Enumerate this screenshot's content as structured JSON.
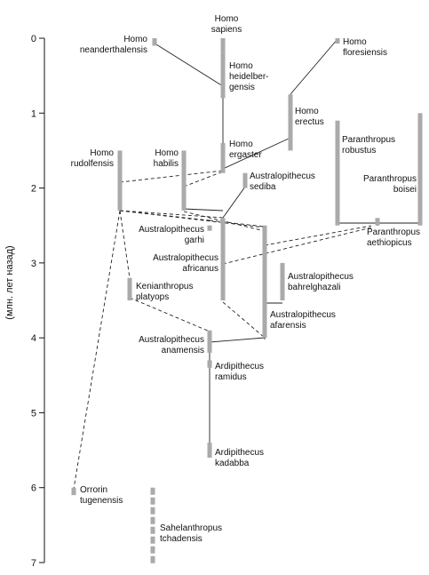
{
  "chart_data": {
    "type": "diagram",
    "ylabel": "(млн. лет назад)",
    "ylim": [
      0,
      7
    ],
    "yticks": [
      0,
      1,
      2,
      3,
      4,
      5,
      6,
      7
    ],
    "bar_color": "#aaaaaa",
    "line_color": "#222222",
    "taxa": [
      {
        "id": "homo-sapiens",
        "lines": [
          "Homo",
          "sapiens"
        ],
        "from": 0.0,
        "to": 0.2
      },
      {
        "id": "homo-neanderthalensis",
        "lines": [
          "Homo",
          "neanderthalensis"
        ],
        "from": 0.0,
        "to": 0.1
      },
      {
        "id": "homo-heidelbergensis",
        "lines": [
          "Homo",
          "heidelber-",
          "gensis"
        ],
        "from": 0.2,
        "to": 0.8
      },
      {
        "id": "homo-floresiensis",
        "lines": [
          "Homo",
          "floresiensis"
        ],
        "from": 0.0,
        "to": 0.05
      },
      {
        "id": "homo-erectus",
        "lines": [
          "Homo",
          "erectus"
        ],
        "from": 0.75,
        "to": 1.5
      },
      {
        "id": "homo-ergaster",
        "lines": [
          "Homo",
          "ergaster"
        ],
        "from": 1.4,
        "to": 1.8
      },
      {
        "id": "homo-rudolfensis",
        "lines": [
          "Homo",
          "rudolfensis"
        ],
        "from": 1.5,
        "to": 2.3
      },
      {
        "id": "homo-habilis",
        "lines": [
          "Homo",
          "habilis"
        ],
        "from": 1.5,
        "to": 2.3
      },
      {
        "id": "australopithecus-sediba",
        "lines": [
          "Australopithecus",
          "sediba"
        ],
        "from": 1.8,
        "to": 2.0
      },
      {
        "id": "paranthropus-robustus",
        "lines": [
          "Paranthropus",
          "robustus"
        ],
        "from": 1.1,
        "to": 2.5
      },
      {
        "id": "paranthropus-boisei",
        "lines": [
          "Paranthropus",
          "boisei"
        ],
        "from": 1.0,
        "to": 2.5
      },
      {
        "id": "paranthropus-aethiopicus",
        "lines": [
          "Paranthropus",
          "aethiopicus"
        ],
        "from": 2.4,
        "to": 2.5
      },
      {
        "id": "australopithecus-garhi",
        "lines": [
          "Australopithecus",
          "garhi"
        ],
        "from": 2.5,
        "to": 2.55
      },
      {
        "id": "australopithecus-africanus",
        "lines": [
          "Australopithecus",
          "africanus"
        ],
        "from": 2.4,
        "to": 3.5
      },
      {
        "id": "kenianthropus-platyops",
        "lines": [
          "Kenianthropus",
          "platyops"
        ],
        "from": 3.2,
        "to": 3.5
      },
      {
        "id": "australopithecus-bahrelghazali",
        "lines": [
          "Australopithecus",
          "bahrelghazali"
        ],
        "from": 3.0,
        "to": 3.5
      },
      {
        "id": "australopithecus-afarensis",
        "lines": [
          "Australopithecus",
          "afarensis"
        ],
        "from": 2.5,
        "to": 4.0
      },
      {
        "id": "australopithecus-anamensis",
        "lines": [
          "Australopithecus",
          "anamensis"
        ],
        "from": 3.9,
        "to": 4.2
      },
      {
        "id": "ardipithecus-ramidus",
        "lines": [
          "Ardipithecus",
          "ramidus"
        ],
        "from": 4.3,
        "to": 4.4
      },
      {
        "id": "ardipithecus-kadabba",
        "lines": [
          "Ardipithecus",
          "kadabba"
        ],
        "from": 5.4,
        "to": 5.6
      },
      {
        "id": "orrorin-tugenensis",
        "lines": [
          "Orrorin",
          "tugenensis"
        ],
        "from": 6.0,
        "to": 6.1
      },
      {
        "id": "sahelanthropus-tchadensis",
        "lines": [
          "Sahelanthropus",
          "tchadensis"
        ],
        "from": 6.0,
        "to": 7.0
      }
    ]
  }
}
